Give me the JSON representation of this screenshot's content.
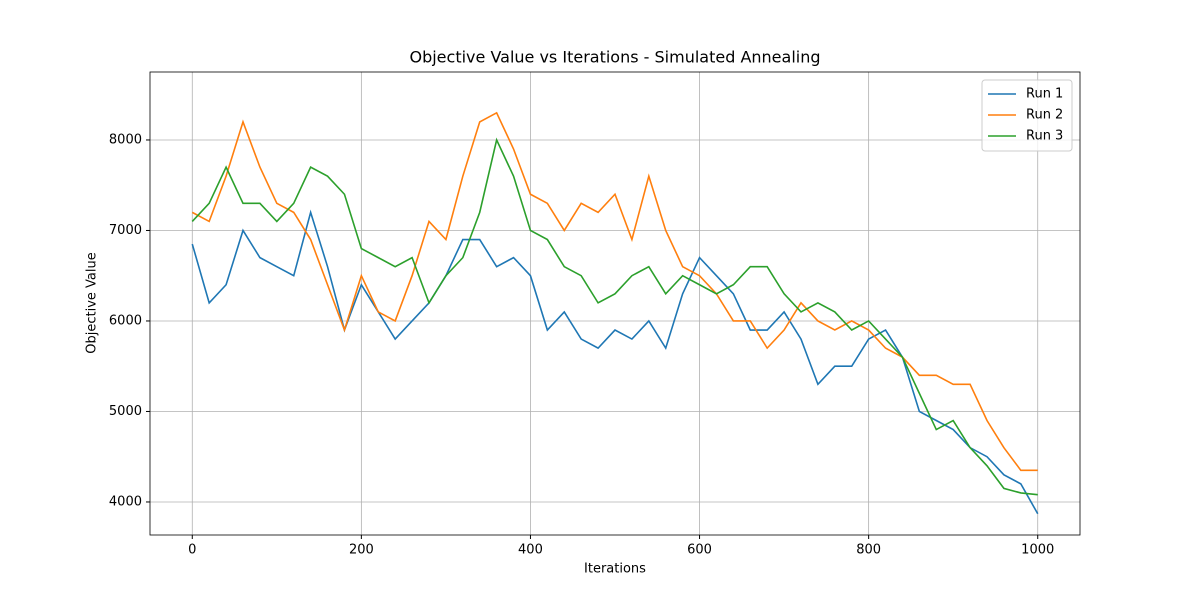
{
  "chart_data": {
    "type": "line",
    "title": "Objective Value vs Iterations - Simulated Annealing",
    "x_label": "Iterations",
    "y_label": "Objective Value",
    "x": [
      0,
      20,
      40,
      60,
      80,
      100,
      120,
      140,
      160,
      180,
      200,
      220,
      240,
      260,
      280,
      300,
      320,
      340,
      360,
      380,
      400,
      420,
      440,
      460,
      480,
      500,
      520,
      540,
      560,
      580,
      600,
      620,
      640,
      660,
      680,
      700,
      720,
      740,
      760,
      780,
      800,
      820,
      840,
      860,
      880,
      900,
      920,
      940,
      960,
      980,
      1000
    ],
    "series": [
      {
        "name": "Run 1",
        "color": "#1f77b4",
        "values": [
          6850,
          6200,
          6400,
          7000,
          6700,
          6600,
          6500,
          7200,
          6600,
          5900,
          6400,
          6100,
          5800,
          6000,
          6200,
          6500,
          6900,
          6900,
          6600,
          6700,
          6500,
          5900,
          6100,
          5800,
          5700,
          5900,
          5800,
          6000,
          5700,
          6300,
          6700,
          6500,
          6300,
          5900,
          5900,
          6100,
          5800,
          5300,
          5500,
          5500,
          5800,
          5900,
          5600,
          5000,
          4900,
          4800,
          4600,
          4500,
          4300,
          4200,
          3870
        ]
      },
      {
        "name": "Run 2",
        "color": "#ff7f0e",
        "values": [
          7200,
          7100,
          7600,
          8200,
          7700,
          7300,
          7200,
          6900,
          6400,
          5900,
          6500,
          6100,
          6000,
          6500,
          7100,
          6900,
          7600,
          8200,
          8300,
          7900,
          7400,
          7300,
          7000,
          7300,
          7200,
          7400,
          6900,
          7600,
          7000,
          6600,
          6500,
          6300,
          6000,
          6000,
          5700,
          5900,
          6200,
          6000,
          5900,
          6000,
          5900,
          5700,
          5600,
          5400,
          5400,
          5300,
          5300,
          4900,
          4600,
          4350,
          4350
        ]
      },
      {
        "name": "Run 3",
        "color": "#2ca02c",
        "values": [
          7100,
          7300,
          7700,
          7300,
          7300,
          7100,
          7300,
          7700,
          7600,
          7400,
          6800,
          6700,
          6600,
          6700,
          6200,
          6500,
          6700,
          7200,
          8000,
          7600,
          7000,
          6900,
          6600,
          6500,
          6200,
          6300,
          6500,
          6600,
          6300,
          6500,
          6400,
          6300,
          6400,
          6600,
          6600,
          6300,
          6100,
          6200,
          6100,
          5900,
          6000,
          5800,
          5600,
          5200,
          4800,
          4900,
          4600,
          4400,
          4150,
          4100,
          4080
        ]
      }
    ],
    "xlim": [
      -50,
      1050
    ],
    "ylim": [
      3635,
      8751
    ],
    "xticks": [
      0,
      200,
      400,
      600,
      800,
      1000
    ],
    "yticks": [
      4000,
      5000,
      6000,
      7000,
      8000
    ],
    "grid": true,
    "legend": "upper right"
  }
}
